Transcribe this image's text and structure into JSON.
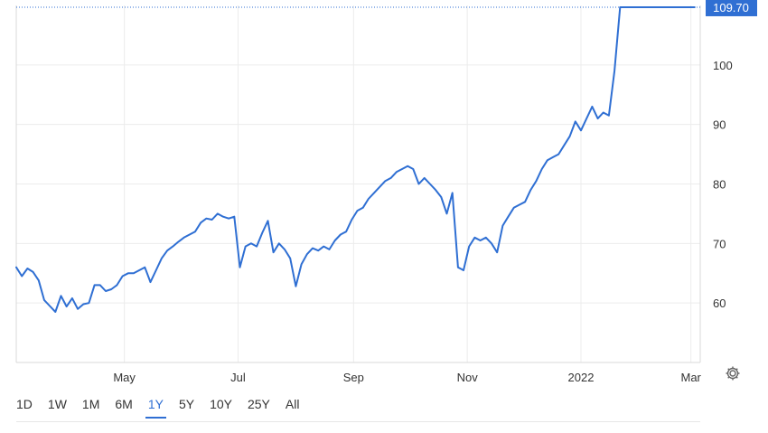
{
  "chart_data": {
    "type": "line",
    "title": "",
    "xlabel": "",
    "ylabel": "",
    "ylim": [
      50,
      110
    ],
    "y_ticks": [
      "100",
      "90",
      "80",
      "70",
      "60"
    ],
    "x_ticks": [
      "May",
      "Jul",
      "Sep",
      "Nov",
      "2022",
      "Mar"
    ],
    "x_tick_dates": [
      "2021-05-01",
      "2021-07-01",
      "2021-09-01",
      "2021-11-01",
      "2022-01-01",
      "2022-03-01"
    ],
    "x_range": [
      "2021-03-04",
      "2022-03-06"
    ],
    "grid": true,
    "last_value_label": "109.70",
    "line_color": "#2f6fd3",
    "series": [
      {
        "x": [
          "2021-03-04",
          "2021-03-07",
          "2021-03-10",
          "2021-03-13",
          "2021-03-16",
          "2021-03-19",
          "2021-03-22",
          "2021-03-25",
          "2021-03-28",
          "2021-03-31",
          "2021-04-03",
          "2021-04-06",
          "2021-04-09",
          "2021-04-12",
          "2021-04-15",
          "2021-04-18",
          "2021-04-21",
          "2021-04-24",
          "2021-04-27",
          "2021-04-30",
          "2021-05-03",
          "2021-05-06",
          "2021-05-09",
          "2021-05-12",
          "2021-05-15",
          "2021-05-18",
          "2021-05-21",
          "2021-05-24",
          "2021-05-27",
          "2021-05-30",
          "2021-06-02",
          "2021-06-05",
          "2021-06-08",
          "2021-06-11",
          "2021-06-14",
          "2021-06-17",
          "2021-06-20",
          "2021-06-23",
          "2021-06-26",
          "2021-06-29",
          "2021-07-02",
          "2021-07-05",
          "2021-07-08",
          "2021-07-11",
          "2021-07-14",
          "2021-07-17",
          "2021-07-20",
          "2021-07-23",
          "2021-07-26",
          "2021-07-29",
          "2021-08-01",
          "2021-08-04",
          "2021-08-07",
          "2021-08-10",
          "2021-08-13",
          "2021-08-16",
          "2021-08-19",
          "2021-08-22",
          "2021-08-25",
          "2021-08-28",
          "2021-08-31",
          "2021-09-03",
          "2021-09-06",
          "2021-09-09",
          "2021-09-12",
          "2021-09-15",
          "2021-09-18",
          "2021-09-21",
          "2021-09-24",
          "2021-09-27",
          "2021-09-30",
          "2021-10-03",
          "2021-10-06",
          "2021-10-09",
          "2021-10-12",
          "2021-10-15",
          "2021-10-18",
          "2021-10-21",
          "2021-10-24",
          "2021-10-27",
          "2021-10-30",
          "2021-11-02",
          "2021-11-05",
          "2021-11-08",
          "2021-11-11",
          "2021-11-14",
          "2021-11-17",
          "2021-11-20",
          "2021-11-23",
          "2021-11-26",
          "2021-11-29",
          "2021-12-02",
          "2021-12-05",
          "2021-12-08",
          "2021-12-11",
          "2021-12-14",
          "2021-12-17",
          "2021-12-20",
          "2021-12-23",
          "2021-12-26",
          "2021-12-29",
          "2022-01-01",
          "2022-01-04",
          "2022-01-07",
          "2022-01-10",
          "2022-01-13",
          "2022-01-16",
          "2022-01-19",
          "2022-01-22",
          "2022-01-25",
          "2022-01-28",
          "2022-01-31",
          "2022-02-03",
          "2022-02-06",
          "2022-02-09",
          "2022-02-12",
          "2022-02-15",
          "2022-02-18",
          "2022-02-21",
          "2022-02-24",
          "2022-02-27",
          "2022-03-02",
          "2022-03-03"
        ],
        "values": [
          66.0,
          64.5,
          65.8,
          65.2,
          63.8,
          60.5,
          59.5,
          58.5,
          61.2,
          59.4,
          60.8,
          59.0,
          59.8,
          60.0,
          63.0,
          63.0,
          62.0,
          62.3,
          63.0,
          64.5,
          65.0,
          65.0,
          65.5,
          66.0,
          63.5,
          65.5,
          67.5,
          68.8,
          69.5,
          70.3,
          71.0,
          71.5,
          72.0,
          73.5,
          74.2,
          74.0,
          75.0,
          74.5,
          74.2,
          74.5,
          66.0,
          69.5,
          70.0,
          69.5,
          71.8,
          73.8,
          68.5,
          70.0,
          69.0,
          67.5,
          62.8,
          66.5,
          68.2,
          69.2,
          68.8,
          69.5,
          69.0,
          70.5,
          71.5,
          72.0,
          74.0,
          75.5,
          76.0,
          77.5,
          78.5,
          79.5,
          80.5,
          81.0,
          82.0,
          82.5,
          83.0,
          82.5,
          80.0,
          81.0,
          80.0,
          79.0,
          77.8,
          75.0,
          78.5,
          66.0,
          65.5,
          69.5,
          71.0,
          70.5,
          71.0,
          70.0,
          68.5,
          73.0,
          74.5,
          76.0,
          76.5,
          77.0,
          79.0,
          80.5,
          82.5,
          84.0,
          84.5,
          85.0,
          86.5,
          88.0,
          90.5,
          89.0,
          91.0,
          93.0,
          91.0,
          92.0,
          91.5,
          99.0,
          109.7,
          109.7,
          109.7,
          109.7,
          109.7,
          109.7,
          109.7,
          109.7,
          109.7,
          109.7,
          109.7,
          109.7,
          109.7,
          109.7,
          109.7
        ]
      }
    ]
  },
  "range_buttons": [
    {
      "label": "1D"
    },
    {
      "label": "1W"
    },
    {
      "label": "1M"
    },
    {
      "label": "6M"
    },
    {
      "label": "1Y",
      "active": true
    },
    {
      "label": "5Y"
    },
    {
      "label": "10Y"
    },
    {
      "label": "25Y"
    },
    {
      "label": "All"
    }
  ]
}
